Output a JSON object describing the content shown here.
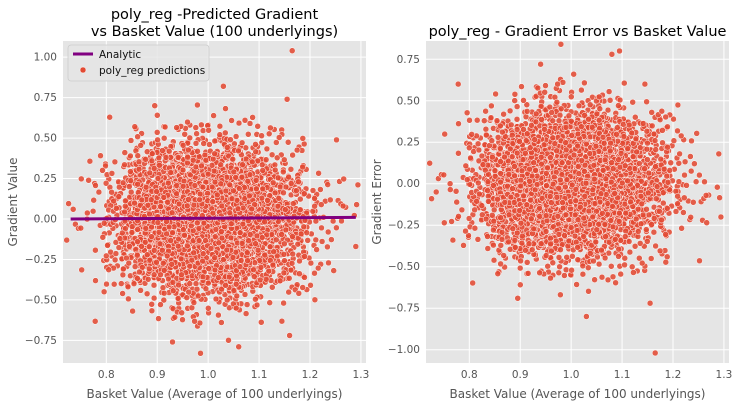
{
  "colors": {
    "background": "#ffffff",
    "axes_face": "#e5e5e5",
    "grid": "#ffffff",
    "points": "#e24a33",
    "point_edge": "#ffffff",
    "analytic_line": "#800080"
  },
  "chart_data": [
    {
      "type": "scatter",
      "title_lines": [
        "poly_reg -Predicted Gradient",
        "vs Basket Value (100 underlyings)"
      ],
      "xlabel": "Basket Value (Average of 100 underlyings)",
      "ylabel": "Gradient Value",
      "xlim": [
        0.715,
        1.31
      ],
      "ylim": [
        -0.89,
        1.1
      ],
      "xticks": [
        0.8,
        0.9,
        1.0,
        1.1,
        1.2,
        1.3
      ],
      "xtick_labels": [
        "0.8",
        "0.9",
        "1.0",
        "1.1",
        "1.2",
        "1.3"
      ],
      "yticks": [
        -0.75,
        -0.5,
        -0.25,
        0.0,
        0.25,
        0.5,
        0.75,
        1.0
      ],
      "ytick_labels": [
        "−0.75",
        "−0.50",
        "−0.25",
        "0.00",
        "0.25",
        "0.50",
        "0.75",
        "1.00"
      ],
      "grid": true,
      "legend": {
        "placement": "top-left",
        "entries": [
          {
            "label": "Analytic",
            "kind": "line"
          },
          {
            "label": "poly_reg predictions",
            "kind": "marker"
          }
        ]
      },
      "series": [
        {
          "name": "Analytic",
          "kind": "line",
          "x": [
            0.73,
            1.29
          ],
          "y": [
            0.0,
            0.01
          ]
        },
        {
          "name": "poly_reg predictions",
          "kind": "scatter",
          "distribution": {
            "n_points": 5000,
            "x_mean": 1.0,
            "x_sd": 0.085,
            "y_mean": 0.0,
            "y_sd": 0.215
          },
          "notable_points": [
            {
              "x": 1.165,
              "y": 1.04
            },
            {
              "x": 1.155,
              "y": 0.74
            },
            {
              "x": 1.03,
              "y": 0.82
            },
            {
              "x": 0.895,
              "y": 0.7
            },
            {
              "x": 0.985,
              "y": -0.83
            },
            {
              "x": 1.06,
              "y": -0.79
            },
            {
              "x": 1.16,
              "y": -0.72
            },
            {
              "x": 0.735,
              "y": 0.06
            },
            {
              "x": 1.29,
              "y": -0.17
            },
            {
              "x": 1.265,
              "y": 0.08
            },
            {
              "x": 0.93,
              "y": -0.76
            },
            {
              "x": 1.04,
              "y": -0.75
            }
          ]
        }
      ]
    },
    {
      "type": "scatter",
      "title_lines": [
        "poly_reg - Gradient Error vs Basket Value"
      ],
      "xlabel": "Basket Value (Average of 100 underlyings)",
      "ylabel": "Gradient Error",
      "xlim": [
        0.715,
        1.31
      ],
      "ylim": [
        -1.08,
        0.86
      ],
      "xticks": [
        0.8,
        0.9,
        1.0,
        1.1,
        1.2,
        1.3
      ],
      "xtick_labels": [
        "0.8",
        "0.9",
        "1.0",
        "1.1",
        "1.2",
        "1.3"
      ],
      "yticks": [
        -1.0,
        -0.75,
        -0.5,
        -0.25,
        0.0,
        0.25,
        0.5,
        0.75
      ],
      "ytick_labels": [
        "−1.00",
        "−0.75",
        "−0.50",
        "−0.25",
        "0.00",
        "0.25",
        "0.50",
        "0.75"
      ],
      "grid": true,
      "series": [
        {
          "name": "",
          "kind": "scatter",
          "distribution": {
            "n_points": 5000,
            "x_mean": 1.0,
            "x_sd": 0.085,
            "y_mean": 0.0,
            "y_sd": 0.215
          },
          "notable_points": [
            {
              "x": 0.98,
              "y": 0.84
            },
            {
              "x": 1.095,
              "y": 0.8
            },
            {
              "x": 1.08,
              "y": 0.78
            },
            {
              "x": 1.165,
              "y": -1.02
            },
            {
              "x": 1.155,
              "y": -0.72
            },
            {
              "x": 1.03,
              "y": -0.8
            },
            {
              "x": 0.895,
              "y": -0.69
            },
            {
              "x": 1.29,
              "y": 0.18
            },
            {
              "x": 1.265,
              "y": -0.07
            },
            {
              "x": 0.735,
              "y": -0.05
            },
            {
              "x": 0.94,
              "y": 0.72
            },
            {
              "x": 1.005,
              "y": 0.66
            }
          ]
        }
      ]
    }
  ]
}
